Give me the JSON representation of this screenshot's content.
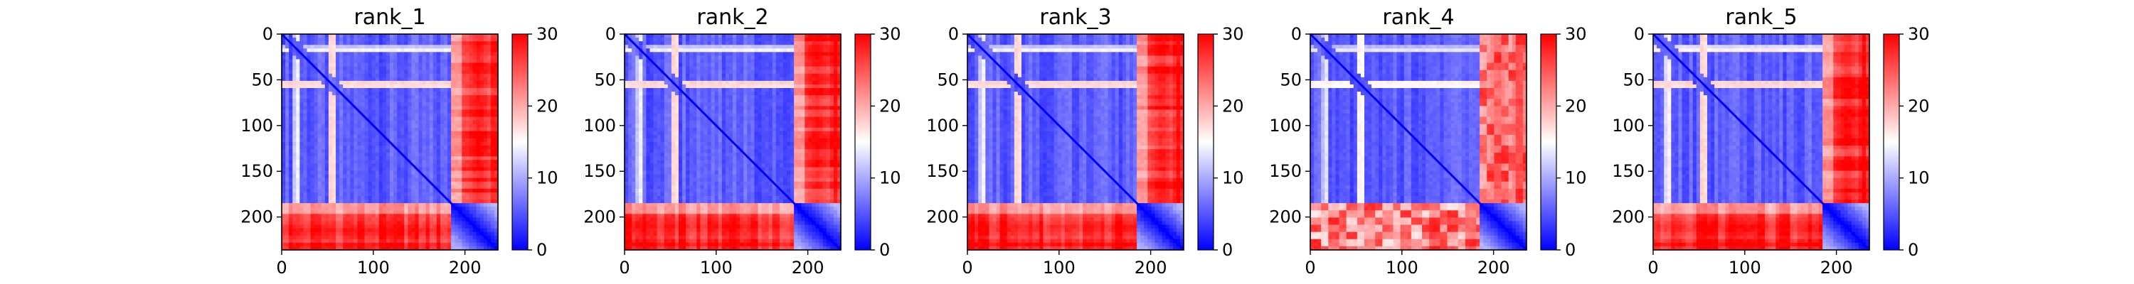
{
  "chart_data": [
    {
      "type": "heatmap",
      "title": "rank_1",
      "xlabel": "",
      "ylabel": "",
      "xlim": [
        0,
        236
      ],
      "ylim": [
        236,
        0
      ],
      "xticks": [
        0,
        100,
        200
      ],
      "yticks": [
        0,
        50,
        100,
        150,
        200
      ],
      "colorbar": {
        "vmin": 0,
        "vmax": 30,
        "ticks": [
          0,
          10,
          20,
          30
        ]
      },
      "colormap": [
        "#0000ff",
        "#ffffff",
        "#ff0000"
      ],
      "matrix_size": 236,
      "block_boundaries": [
        183,
        236
      ],
      "bands": [
        {
          "center": 16,
          "width": 3,
          "intensity": 0.85
        },
        {
          "center": 55,
          "width": 4,
          "intensity": 0.95
        }
      ],
      "column_bands": [
        {
          "center": 215,
          "width": 8,
          "intensity": 0.6
        },
        {
          "center": 232,
          "width": 4,
          "intensity": 0.9
        }
      ],
      "grid": false
    },
    {
      "type": "heatmap",
      "title": "rank_2",
      "xlabel": "",
      "ylabel": "",
      "xlim": [
        0,
        236
      ],
      "ylim": [
        236,
        0
      ],
      "xticks": [
        0,
        100,
        200
      ],
      "yticks": [
        0,
        50,
        100,
        150,
        200
      ],
      "colorbar": {
        "vmin": 0,
        "vmax": 30,
        "ticks": [
          0,
          10,
          20,
          30
        ]
      },
      "colormap": [
        "#0000ff",
        "#ffffff",
        "#ff0000"
      ],
      "matrix_size": 236,
      "block_boundaries": [
        183,
        236
      ],
      "bands": [
        {
          "center": 16,
          "width": 3,
          "intensity": 0.85
        },
        {
          "center": 55,
          "width": 4,
          "intensity": 0.95
        }
      ],
      "column_bands": [
        {
          "center": 210,
          "width": 10,
          "intensity": 0.55
        },
        {
          "center": 230,
          "width": 5,
          "intensity": 0.9
        }
      ],
      "grid": false
    },
    {
      "type": "heatmap",
      "title": "rank_3",
      "xlabel": "",
      "ylabel": "",
      "xlim": [
        0,
        236
      ],
      "ylim": [
        236,
        0
      ],
      "xticks": [
        0,
        100,
        200
      ],
      "yticks": [
        0,
        50,
        100,
        150,
        200
      ],
      "colorbar": {
        "vmin": 0,
        "vmax": 30,
        "ticks": [
          0,
          10,
          20,
          30
        ]
      },
      "colormap": [
        "#0000ff",
        "#ffffff",
        "#ff0000"
      ],
      "matrix_size": 236,
      "block_boundaries": [
        183,
        236
      ],
      "bands": [
        {
          "center": 16,
          "width": 3,
          "intensity": 0.85
        },
        {
          "center": 55,
          "width": 4,
          "intensity": 0.95
        }
      ],
      "column_bands": [
        {
          "center": 212,
          "width": 8,
          "intensity": 0.6
        },
        {
          "center": 230,
          "width": 5,
          "intensity": 0.9
        }
      ],
      "grid": false
    },
    {
      "type": "heatmap",
      "title": "rank_4",
      "xlabel": "",
      "ylabel": "",
      "xlim": [
        0,
        236
      ],
      "ylim": [
        236,
        0
      ],
      "xticks": [
        0,
        100,
        200
      ],
      "yticks": [
        0,
        50,
        100,
        150,
        200
      ],
      "colorbar": {
        "vmin": 0,
        "vmax": 30,
        "ticks": [
          0,
          10,
          20,
          30
        ]
      },
      "colormap": [
        "#0000ff",
        "#ffffff",
        "#ff0000"
      ],
      "matrix_size": 236,
      "block_boundaries": [
        183,
        236
      ],
      "bands": [
        {
          "center": 16,
          "width": 3,
          "intensity": 0.8
        },
        {
          "center": 55,
          "width": 4,
          "intensity": 0.85
        }
      ],
      "column_bands": [
        {
          "center": 205,
          "width": 10,
          "intensity": 0.4
        },
        {
          "center": 228,
          "width": 6,
          "intensity": 0.7
        }
      ],
      "grid": false
    },
    {
      "type": "heatmap",
      "title": "rank_5",
      "xlabel": "",
      "ylabel": "",
      "xlim": [
        0,
        236
      ],
      "ylim": [
        236,
        0
      ],
      "xticks": [
        0,
        100,
        200
      ],
      "yticks": [
        0,
        50,
        100,
        150,
        200
      ],
      "colorbar": {
        "vmin": 0,
        "vmax": 30,
        "ticks": [
          0,
          10,
          20,
          30
        ]
      },
      "colormap": [
        "#0000ff",
        "#ffffff",
        "#ff0000"
      ],
      "matrix_size": 236,
      "block_boundaries": [
        183,
        236
      ],
      "bands": [
        {
          "center": 16,
          "width": 3,
          "intensity": 0.95
        },
        {
          "center": 55,
          "width": 4,
          "intensity": 0.95
        }
      ],
      "column_bands": [
        {
          "center": 212,
          "width": 8,
          "intensity": 0.6
        },
        {
          "center": 230,
          "width": 5,
          "intensity": 0.95
        }
      ],
      "grid": false
    }
  ]
}
